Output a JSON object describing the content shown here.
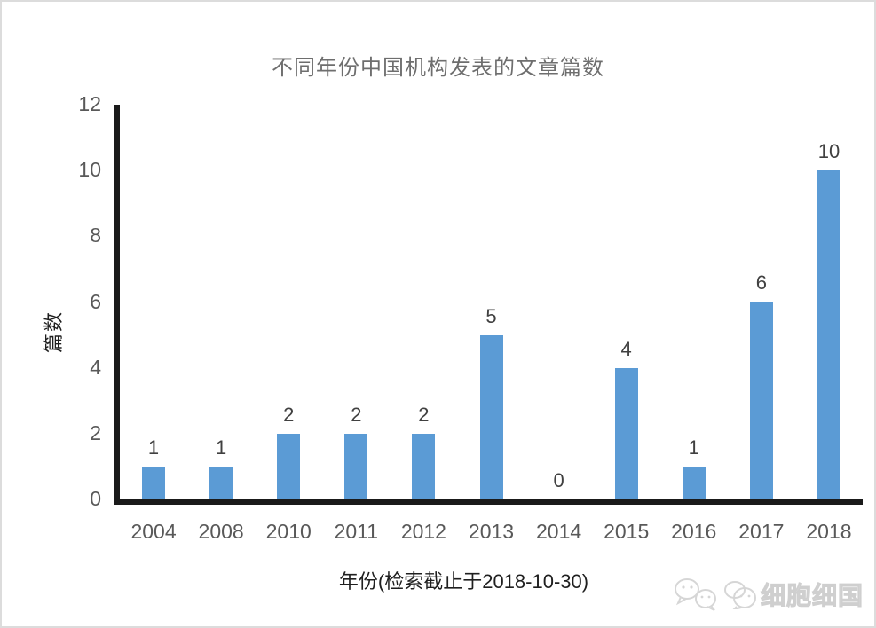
{
  "chart_data": {
    "type": "bar",
    "title": "不同年份中国机构发表的文章篇数",
    "xlabel": "年份(检索截止于2018-10-30)",
    "ylabel": "篇数",
    "categories": [
      "2004",
      "2008",
      "2010",
      "2011",
      "2012",
      "2013",
      "2014",
      "2015",
      "2016",
      "2017",
      "2018"
    ],
    "values": [
      1,
      1,
      2,
      2,
      2,
      5,
      0,
      4,
      1,
      6,
      10
    ],
    "data_labels": [
      "1",
      "1",
      "2",
      "2",
      "2",
      "5",
      "0",
      "4",
      "1",
      "6",
      "10"
    ],
    "ylim": [
      0,
      12
    ],
    "yticks": [
      0,
      2,
      4,
      6,
      8,
      10,
      12
    ],
    "grid": false,
    "legend": "none",
    "bar_color": "#5b9bd5"
  },
  "colors": {
    "title": "#6e6e6e",
    "tick": "#595959",
    "data_label": "#404040",
    "axis_label": "#1f1f1f",
    "axis_line": "#1a1a1a",
    "bar": "#5b9bd5",
    "frame_border": "#dcdcdc",
    "watermark": "#cfcfcf"
  },
  "watermark": {
    "icon": "wechat-bubbles-icon",
    "text": "细胞细国"
  }
}
